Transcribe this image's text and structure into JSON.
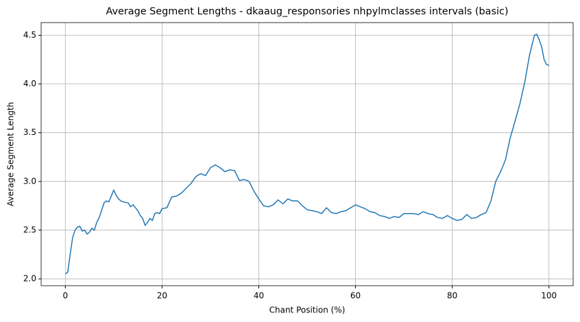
{
  "chart_data": {
    "type": "line",
    "title": "Average Segment Lengths - dkaaug_responsories nhpylmclasses intervals (basic)",
    "xlabel": "Chant Position (%)",
    "ylabel": "Average Segment Length",
    "x": [
      0,
      0.5,
      1,
      1.5,
      2,
      2.5,
      3,
      3.5,
      4,
      4.5,
      5,
      5.5,
      6,
      6.5,
      7,
      7.5,
      8,
      8.5,
      9,
      9.5,
      10,
      10.5,
      11,
      11.5,
      12,
      13,
      13.5,
      14,
      15,
      15.5,
      16,
      16.5,
      17,
      17.5,
      18,
      18.5,
      19,
      19.5,
      20,
      21,
      22,
      23,
      24,
      25,
      26,
      27,
      28,
      29,
      30,
      31,
      32,
      33,
      34,
      35,
      36,
      37,
      38,
      39,
      40,
      41,
      42,
      43,
      44,
      45,
      46,
      47,
      48,
      49,
      50,
      51,
      52,
      53,
      54,
      55,
      56,
      57,
      58,
      59,
      60,
      61,
      62,
      63,
      64,
      65,
      66,
      67,
      68,
      69,
      70,
      71,
      72,
      73,
      74,
      75,
      76,
      77,
      78,
      79,
      80,
      81,
      82,
      83,
      84,
      85,
      86,
      87,
      88,
      89,
      90,
      91,
      92,
      93,
      94,
      95,
      96,
      96.5,
      97,
      97.5,
      98,
      98.5,
      99,
      99.5,
      100
    ],
    "series": [
      {
        "name": "Average Segment Length",
        "color": "#1f77b4",
        "values": [
          2.05,
          2.07,
          2.25,
          2.42,
          2.5,
          2.53,
          2.54,
          2.49,
          2.5,
          2.46,
          2.48,
          2.52,
          2.5,
          2.58,
          2.63,
          2.7,
          2.78,
          2.8,
          2.79,
          2.85,
          2.91,
          2.86,
          2.82,
          2.8,
          2.79,
          2.78,
          2.74,
          2.76,
          2.7,
          2.65,
          2.62,
          2.55,
          2.58,
          2.62,
          2.6,
          2.67,
          2.68,
          2.67,
          2.72,
          2.73,
          2.84,
          2.85,
          2.88,
          2.93,
          2.98,
          3.05,
          3.08,
          3.06,
          3.14,
          3.17,
          3.14,
          3.1,
          3.12,
          3.11,
          3.01,
          3.02,
          3.0,
          2.9,
          2.82,
          2.75,
          2.74,
          2.76,
          2.81,
          2.77,
          2.82,
          2.8,
          2.8,
          2.75,
          2.71,
          2.7,
          2.69,
          2.67,
          2.73,
          2.68,
          2.67,
          2.69,
          2.7,
          2.73,
          2.76,
          2.74,
          2.72,
          2.69,
          2.68,
          2.65,
          2.64,
          2.62,
          2.64,
          2.63,
          2.67,
          2.67,
          2.67,
          2.66,
          2.69,
          2.67,
          2.66,
          2.63,
          2.62,
          2.65,
          2.62,
          2.6,
          2.61,
          2.66,
          2.62,
          2.63,
          2.66,
          2.68,
          2.8,
          3.0,
          3.1,
          3.22,
          3.45,
          3.62,
          3.8,
          4.02,
          4.3,
          4.4,
          4.5,
          4.51,
          4.45,
          4.38,
          4.25,
          4.2,
          4.19
        ]
      }
    ],
    "xlim": [
      -5,
      105
    ],
    "xticks": [
      0,
      20,
      40,
      60,
      80,
      100
    ],
    "ylim": [
      1.93,
      4.63
    ],
    "yticks": [
      {
        "value": 2.0,
        "label": "2.0"
      },
      2.5,
      {
        "value": 3.0,
        "label": "3.0"
      },
      3.5,
      {
        "value": 4.0,
        "label": "4.0"
      },
      4.5
    ],
    "grid": true
  }
}
